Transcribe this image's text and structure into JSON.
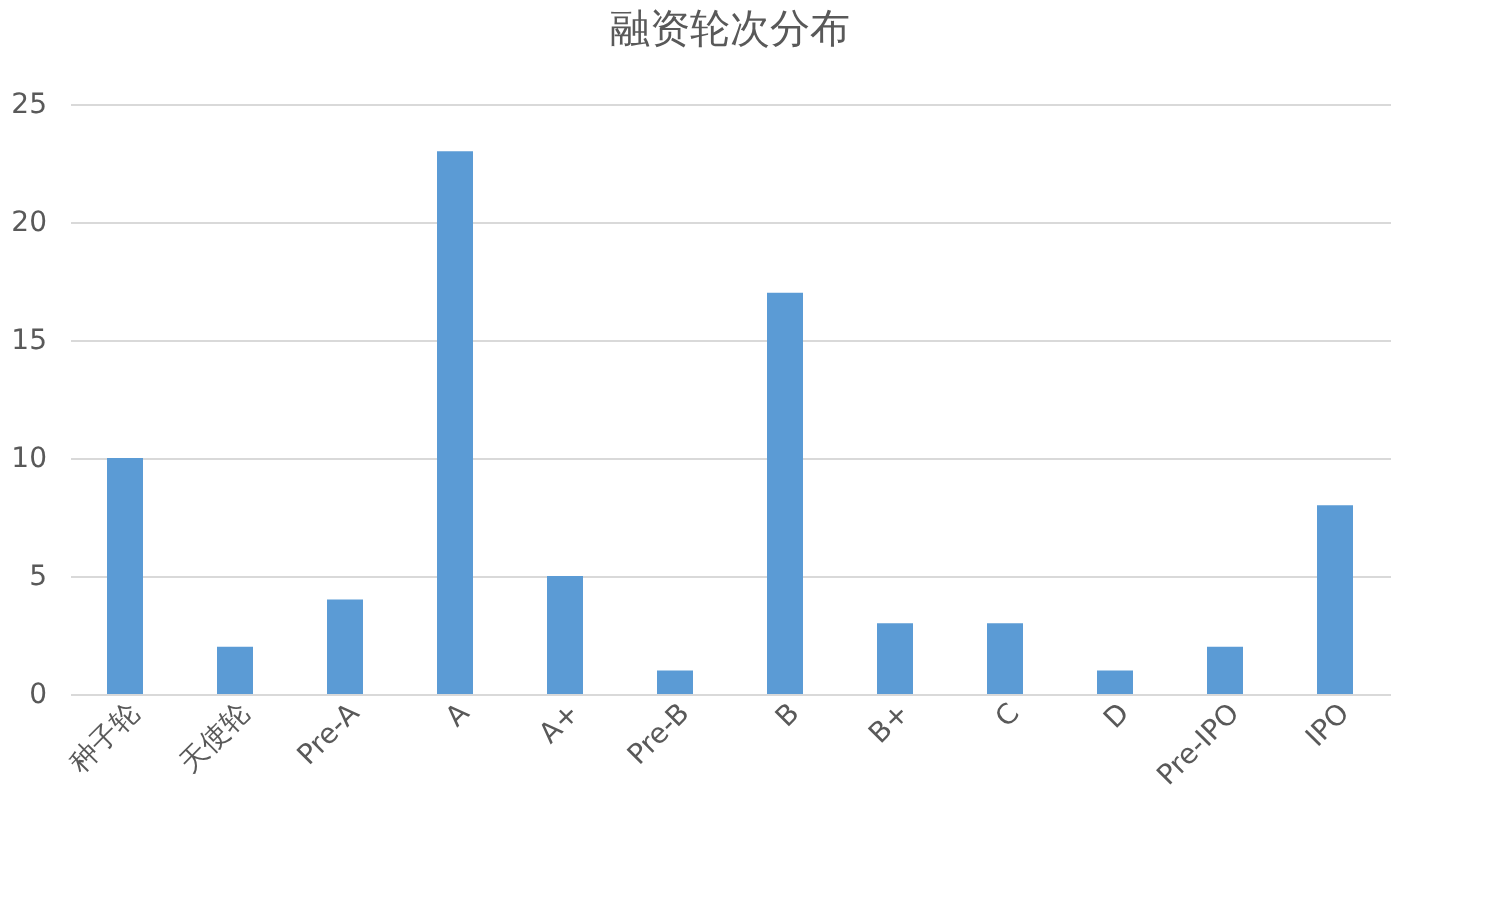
{
  "chart_data": {
    "type": "bar",
    "title": "融资轮次分布",
    "categories": [
      "种子轮",
      "天使轮",
      "Pre-A",
      "A",
      "A+",
      "Pre-B",
      "B",
      "B+",
      "C",
      "D",
      "Pre-IPO",
      "IPO"
    ],
    "values": [
      10,
      2,
      4,
      23,
      5,
      1,
      17,
      3,
      3,
      1,
      2,
      8
    ],
    "color": "#5b9bd5",
    "ylim": [
      0,
      25
    ],
    "yticks": [
      0,
      5,
      10,
      15,
      20,
      25
    ],
    "grid": "y"
  }
}
